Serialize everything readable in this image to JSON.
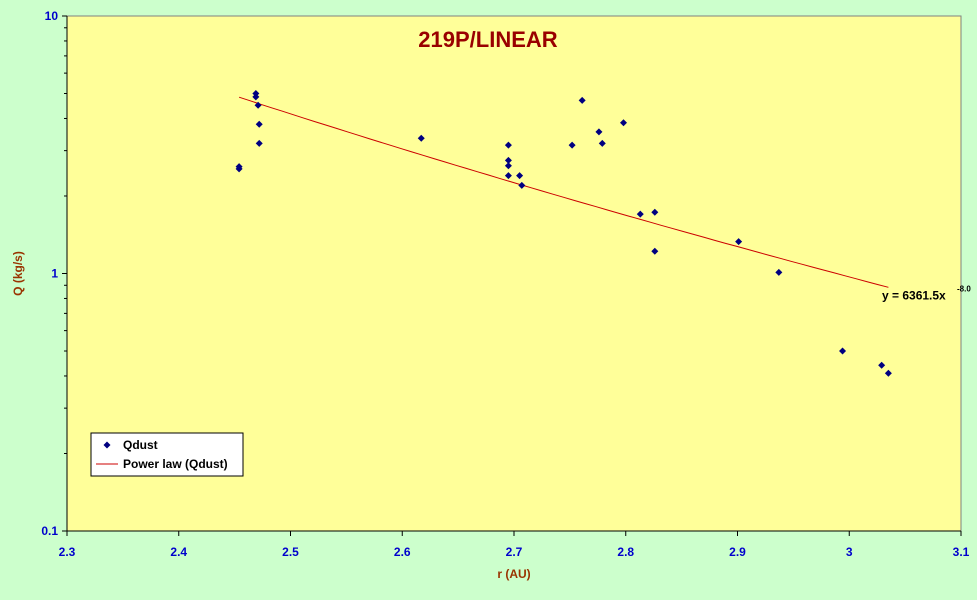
{
  "chart_data": {
    "type": "scatter",
    "title": "219P/LINEAR",
    "xlabel": "r (AU)",
    "ylabel": "Q (kg/s)",
    "xlim": [
      2.3,
      3.1
    ],
    "ylim": [
      0.1,
      10
    ],
    "y_scale": "log",
    "x_ticks": [
      "2.3",
      "2.4",
      "2.5",
      "2.6",
      "2.7",
      "2.8",
      "2.9",
      "3",
      "3.1"
    ],
    "y_ticks": [
      "0.1",
      "1",
      "10"
    ],
    "grid": false,
    "legend_position": "bottom-left",
    "series": [
      {
        "name": "Qdust",
        "kind": "points",
        "color": "#000080",
        "points": [
          [
            2.454,
            2.6
          ],
          [
            2.454,
            2.55
          ],
          [
            2.469,
            5.0
          ],
          [
            2.469,
            4.85
          ],
          [
            2.471,
            4.5
          ],
          [
            2.472,
            3.8
          ],
          [
            2.472,
            3.2
          ],
          [
            2.617,
            3.35
          ],
          [
            2.695,
            3.15
          ],
          [
            2.695,
            2.75
          ],
          [
            2.695,
            2.62
          ],
          [
            2.695,
            2.4
          ],
          [
            2.705,
            2.4
          ],
          [
            2.707,
            2.2
          ],
          [
            2.752,
            3.15
          ],
          [
            2.761,
            4.7
          ],
          [
            2.776,
            3.55
          ],
          [
            2.779,
            3.2
          ],
          [
            2.798,
            3.85
          ],
          [
            2.813,
            1.7
          ],
          [
            2.826,
            1.73
          ],
          [
            2.826,
            1.22
          ],
          [
            2.901,
            1.33
          ],
          [
            2.937,
            1.01
          ],
          [
            2.994,
            0.5
          ],
          [
            3.029,
            0.44
          ],
          [
            3.035,
            0.41
          ]
        ]
      },
      {
        "name": "Power law (Qdust)",
        "kind": "fit",
        "color": "#cc0000",
        "equation": "y = 6361.5x",
        "exponent": "-8.0",
        "coefficient": 6361.5,
        "power": -8.0,
        "x_range": [
          2.454,
          3.035
        ]
      }
    ]
  }
}
